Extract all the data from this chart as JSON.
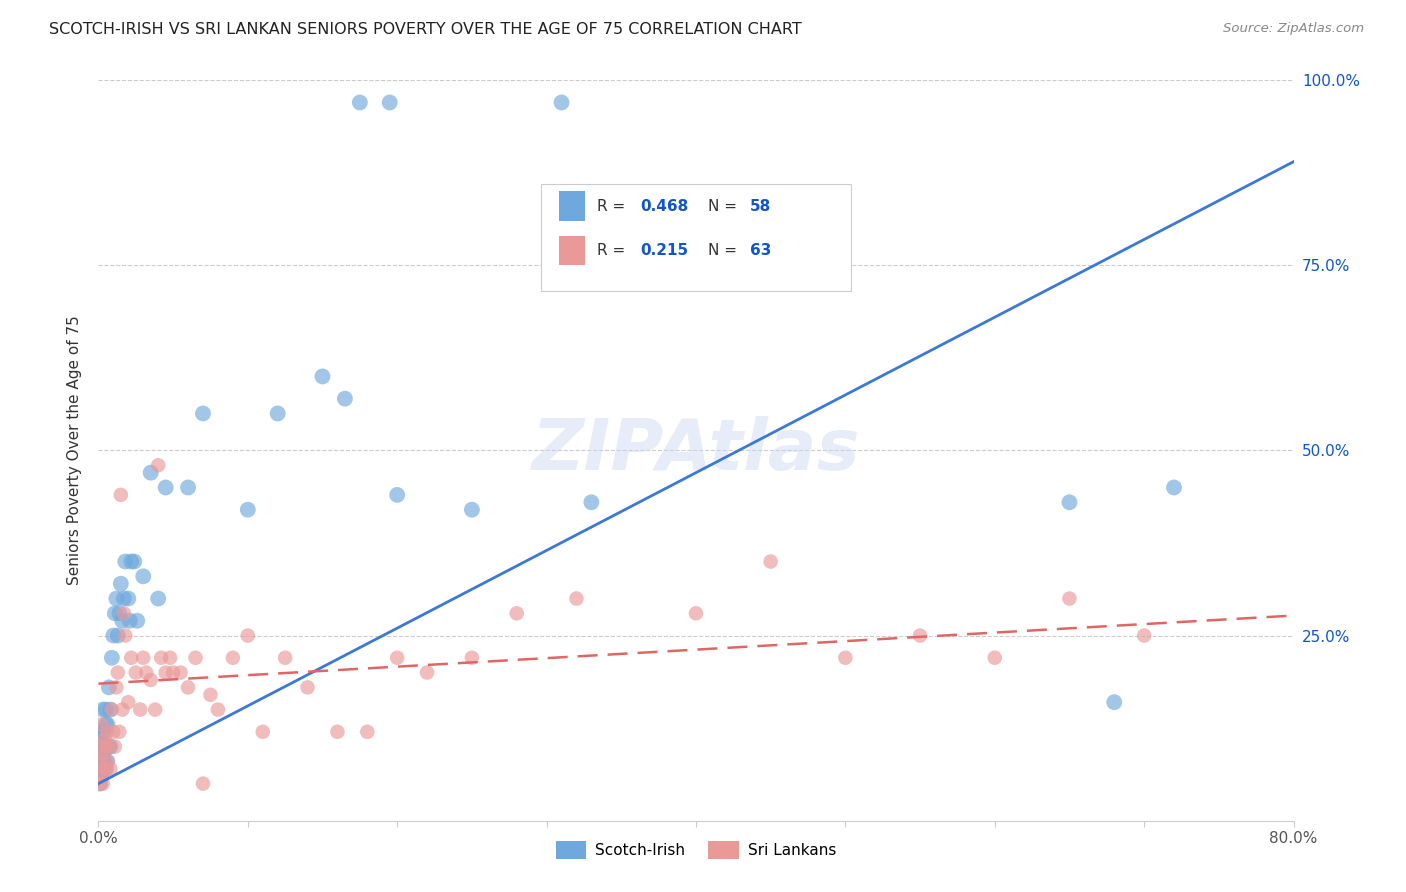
{
  "title": "SCOTCH-IRISH VS SRI LANKAN SENIORS POVERTY OVER THE AGE OF 75 CORRELATION CHART",
  "source": "Source: ZipAtlas.com",
  "ylabel": "Seniors Poverty Over the Age of 75",
  "x_min": 0.0,
  "x_max": 0.8,
  "y_min": 0.0,
  "y_max": 1.0,
  "color_blue": "#6fa8dc",
  "color_pink": "#ea9999",
  "color_blue_line": "#3c78d8",
  "color_pink_line": "#e06666",
  "color_blue_text": "#1155cc",
  "background": "#ffffff",
  "watermark": "ZIPAtlas",
  "blue_line_intercept": 0.05,
  "blue_line_slope": 1.05,
  "pink_line_intercept": 0.185,
  "pink_line_slope": 0.115,
  "scotch_irish_x": [
    0.001,
    0.001,
    0.001,
    0.002,
    0.002,
    0.002,
    0.002,
    0.003,
    0.003,
    0.003,
    0.003,
    0.004,
    0.004,
    0.004,
    0.005,
    0.005,
    0.005,
    0.005,
    0.006,
    0.006,
    0.007,
    0.007,
    0.008,
    0.008,
    0.009,
    0.01,
    0.011,
    0.012,
    0.013,
    0.014,
    0.015,
    0.016,
    0.017,
    0.018,
    0.02,
    0.021,
    0.022,
    0.024,
    0.026,
    0.03,
    0.035,
    0.04,
    0.045,
    0.06,
    0.07,
    0.1,
    0.12,
    0.15,
    0.2,
    0.25,
    0.165,
    0.175,
    0.195,
    0.31,
    0.33,
    0.65,
    0.68,
    0.72
  ],
  "scotch_irish_y": [
    0.05,
    0.07,
    0.1,
    0.06,
    0.08,
    0.1,
    0.12,
    0.07,
    0.09,
    0.12,
    0.15,
    0.08,
    0.1,
    0.12,
    0.07,
    0.1,
    0.13,
    0.15,
    0.08,
    0.13,
    0.1,
    0.18,
    0.1,
    0.15,
    0.22,
    0.25,
    0.28,
    0.3,
    0.25,
    0.28,
    0.32,
    0.27,
    0.3,
    0.35,
    0.3,
    0.27,
    0.35,
    0.35,
    0.27,
    0.33,
    0.47,
    0.3,
    0.45,
    0.45,
    0.55,
    0.42,
    0.55,
    0.6,
    0.44,
    0.42,
    0.57,
    0.97,
    0.97,
    0.97,
    0.43,
    0.43,
    0.16,
    0.45
  ],
  "sri_lankan_x": [
    0.001,
    0.001,
    0.002,
    0.002,
    0.002,
    0.003,
    0.003,
    0.004,
    0.004,
    0.005,
    0.005,
    0.006,
    0.006,
    0.007,
    0.008,
    0.009,
    0.01,
    0.011,
    0.012,
    0.013,
    0.014,
    0.015,
    0.016,
    0.017,
    0.018,
    0.02,
    0.022,
    0.025,
    0.028,
    0.03,
    0.032,
    0.035,
    0.038,
    0.04,
    0.042,
    0.045,
    0.048,
    0.05,
    0.055,
    0.06,
    0.065,
    0.07,
    0.075,
    0.08,
    0.09,
    0.1,
    0.11,
    0.125,
    0.14,
    0.16,
    0.18,
    0.2,
    0.22,
    0.25,
    0.28,
    0.32,
    0.4,
    0.45,
    0.5,
    0.55,
    0.6,
    0.65,
    0.7
  ],
  "sri_lankan_y": [
    0.05,
    0.08,
    0.06,
    0.1,
    0.13,
    0.05,
    0.09,
    0.07,
    0.11,
    0.07,
    0.1,
    0.08,
    0.12,
    0.1,
    0.07,
    0.15,
    0.12,
    0.1,
    0.18,
    0.2,
    0.12,
    0.44,
    0.15,
    0.28,
    0.25,
    0.16,
    0.22,
    0.2,
    0.15,
    0.22,
    0.2,
    0.19,
    0.15,
    0.48,
    0.22,
    0.2,
    0.22,
    0.2,
    0.2,
    0.18,
    0.22,
    0.05,
    0.17,
    0.15,
    0.22,
    0.25,
    0.12,
    0.22,
    0.18,
    0.12,
    0.12,
    0.22,
    0.2,
    0.22,
    0.28,
    0.3,
    0.28,
    0.35,
    0.22,
    0.25,
    0.22,
    0.3,
    0.25
  ]
}
